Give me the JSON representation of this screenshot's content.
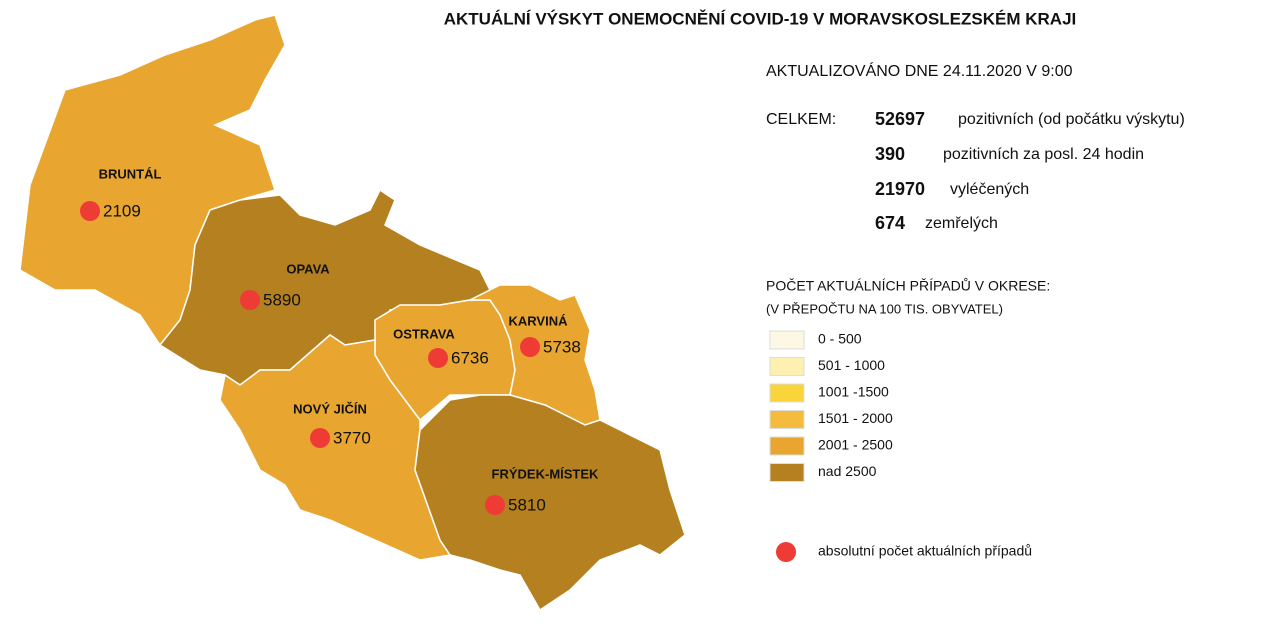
{
  "title": "AKTUÁLNÍ VÝSKYT ONEMOCNĚNÍ COVID-19 V MORAVSKOSLEZSKÉM KRAJI",
  "updated": "AKTUALIZOVÁNO DNE 24.11.2020 V 9:00",
  "totals": {
    "label": "CELKEM:",
    "rows": [
      {
        "value": 52697,
        "text": "pozitivních (od počátku výskytu)"
      },
      {
        "value": 390,
        "text": "pozitivních za posl. 24 hodin"
      },
      {
        "value": 21970,
        "text": "vyléčených"
      },
      {
        "value": 674,
        "text": "zemřelých"
      }
    ]
  },
  "legend": {
    "title": "POČET AKTUÁLNÍCH PŘÍPADŮ V OKRESE:",
    "subtitle": "(V PŘEPOČTU NA 100 TIS. OBYVATEL)",
    "items": [
      {
        "label": "0 - 500",
        "color": "#fdf8e4"
      },
      {
        "label": "501 - 1000",
        "color": "#fdf0b0"
      },
      {
        "label": "1001 -1500",
        "color": "#f9d43a"
      },
      {
        "label": "1501 - 2000",
        "color": "#f5bb3c"
      },
      {
        "label": "2001 - 2500",
        "color": "#e8a52f"
      },
      {
        "label": "nad 2500",
        "color": "#b5801f"
      }
    ],
    "marker_label": "absolutní počet aktuálních případů",
    "marker_color": "#ee3b36"
  },
  "districts": [
    {
      "name": "BRUNTÁL",
      "cases": 2109,
      "color": "#e8a52f"
    },
    {
      "name": "OPAVA",
      "cases": 5890,
      "color": "#b5801f"
    },
    {
      "name": "OSTRAVA",
      "cases": 6736,
      "color": "#e8a52f"
    },
    {
      "name": "KARVINÁ",
      "cases": 5738,
      "color": "#e8a52f"
    },
    {
      "name": "NOVÝ JIČÍN",
      "cases": 3770,
      "color": "#e8a52f"
    },
    {
      "name": "FRÝDEK-MÍSTEK",
      "cases": 5810,
      "color": "#b5801f"
    }
  ]
}
